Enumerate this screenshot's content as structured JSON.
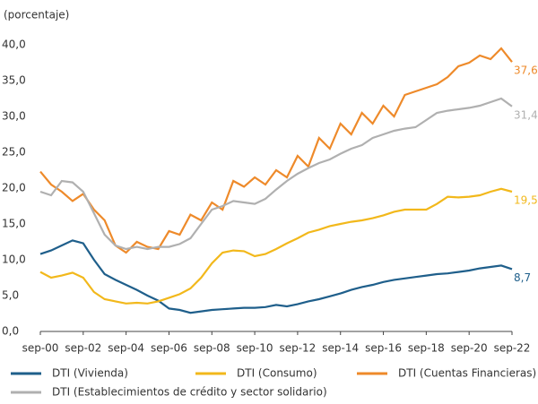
{
  "chart_data": {
    "type": "line",
    "y_axis_label": "(porcentaje)",
    "categories": [
      "sep-00",
      null,
      null,
      null,
      "sep-02",
      null,
      null,
      null,
      "sep-04",
      null,
      null,
      null,
      "sep-06",
      null,
      null,
      null,
      "sep-08",
      null,
      null,
      null,
      "sep-10",
      null,
      null,
      null,
      "sep-12",
      null,
      null,
      null,
      "sep-14",
      null,
      null,
      null,
      "sep-16",
      null,
      null,
      null,
      "sep-18",
      null,
      null,
      null,
      "sep-20",
      null,
      null,
      null,
      "sep-22"
    ],
    "ylim": [
      0,
      40
    ],
    "yticks": [
      {
        "value": 0,
        "label": "0,0"
      },
      {
        "value": 5,
        "label": "5,0"
      },
      {
        "value": 10,
        "label": "10,0"
      },
      {
        "value": 15,
        "label": "15,0"
      },
      {
        "value": 20,
        "label": "20,0"
      },
      {
        "value": 25,
        "label": "25,0"
      },
      {
        "value": 30,
        "label": "30,0"
      },
      {
        "value": 35,
        "label": "35,0"
      },
      {
        "value": 40,
        "label": "40,0"
      }
    ],
    "grid": false,
    "series": [
      {
        "name": "DTI (Vivienda)",
        "color": "#1f5f8b",
        "values": [
          10.8,
          11.3,
          12.0,
          12.7,
          12.3,
          10.0,
          8.0,
          7.2,
          6.5,
          5.8,
          5.0,
          4.3,
          3.2,
          3.0,
          2.6,
          2.8,
          3.0,
          3.1,
          3.2,
          3.3,
          3.3,
          3.4,
          3.7,
          3.5,
          3.8,
          4.2,
          4.5,
          4.9,
          5.3,
          5.8,
          6.2,
          6.5,
          6.9,
          7.2,
          7.4,
          7.6,
          7.8,
          8.0,
          8.1,
          8.3,
          8.5,
          8.8,
          9.0,
          9.2,
          8.7
        ],
        "value_labels": [
          null,
          null,
          null,
          null,
          null,
          null,
          null,
          null,
          null,
          null,
          null,
          null,
          null,
          null,
          null,
          null,
          null,
          null,
          null,
          null,
          null,
          null,
          null,
          null,
          null,
          null,
          null,
          null,
          null,
          null,
          null,
          null,
          null,
          null,
          null,
          null,
          null,
          null,
          null,
          null,
          null,
          null,
          null,
          null,
          "8,7"
        ]
      },
      {
        "name": "DTI (Consumo)",
        "color": "#f2b81b",
        "values": [
          8.3,
          7.5,
          7.8,
          8.2,
          7.5,
          5.5,
          4.5,
          4.2,
          3.9,
          4.0,
          3.9,
          4.2,
          4.7,
          5.2,
          6.0,
          7.5,
          9.5,
          11.0,
          11.3,
          11.2,
          10.5,
          10.8,
          11.5,
          12.3,
          13.0,
          13.8,
          14.2,
          14.7,
          15.0,
          15.3,
          15.5,
          15.8,
          16.2,
          16.7,
          17.0,
          17.0,
          17.0,
          17.8,
          18.8,
          18.7,
          18.8,
          19.0,
          19.5,
          19.9,
          19.5
        ],
        "value_labels": [
          null,
          null,
          null,
          null,
          null,
          null,
          null,
          null,
          null,
          null,
          null,
          null,
          null,
          null,
          null,
          null,
          null,
          null,
          null,
          null,
          null,
          null,
          null,
          null,
          null,
          null,
          null,
          null,
          null,
          null,
          null,
          null,
          null,
          null,
          null,
          null,
          null,
          null,
          null,
          null,
          null,
          null,
          null,
          null,
          "19,5"
        ]
      },
      {
        "name": "DTI (Cuentas Financieras)",
        "color": "#ee8a2a",
        "values": [
          22.3,
          20.5,
          19.5,
          18.2,
          19.2,
          17.0,
          15.5,
          12.0,
          11.0,
          12.5,
          11.8,
          11.5,
          14.0,
          13.5,
          16.3,
          15.5,
          18.0,
          17.0,
          21.0,
          20.2,
          21.5,
          20.5,
          22.5,
          21.5,
          24.5,
          23.0,
          27.0,
          25.5,
          29.0,
          27.5,
          30.5,
          29.0,
          31.5,
          30.0,
          33.0,
          33.5,
          34.0,
          34.5,
          35.5,
          37.0,
          37.5,
          38.5,
          38.0,
          39.5,
          37.6
        ],
        "value_labels": [
          null,
          null,
          null,
          null,
          null,
          null,
          null,
          null,
          null,
          null,
          null,
          null,
          null,
          null,
          null,
          null,
          null,
          null,
          null,
          null,
          null,
          null,
          null,
          null,
          null,
          null,
          null,
          null,
          null,
          null,
          null,
          null,
          null,
          null,
          null,
          null,
          null,
          null,
          null,
          null,
          null,
          null,
          null,
          null,
          "37,6"
        ]
      },
      {
        "name": "DTI (Establecimientos de crédito y sector solidario)",
        "color": "#b0b0b0",
        "values": [
          19.5,
          19.0,
          21.0,
          20.8,
          19.5,
          16.5,
          13.5,
          12.0,
          11.5,
          11.8,
          11.5,
          11.8,
          11.8,
          12.2,
          13.0,
          15.0,
          17.0,
          17.5,
          18.2,
          18.0,
          17.8,
          18.5,
          19.8,
          21.0,
          22.0,
          22.8,
          23.5,
          24.0,
          24.8,
          25.5,
          26.0,
          27.0,
          27.5,
          28.0,
          28.3,
          28.5,
          29.5,
          30.5,
          30.8,
          31.0,
          31.2,
          31.5,
          32.0,
          32.5,
          31.4
        ],
        "value_labels": [
          null,
          null,
          null,
          null,
          null,
          null,
          null,
          null,
          null,
          null,
          null,
          null,
          null,
          null,
          null,
          null,
          null,
          null,
          null,
          null,
          null,
          null,
          null,
          null,
          null,
          null,
          null,
          null,
          null,
          null,
          null,
          null,
          null,
          null,
          null,
          null,
          null,
          null,
          null,
          null,
          null,
          null,
          null,
          null,
          "31,4"
        ]
      }
    ]
  }
}
